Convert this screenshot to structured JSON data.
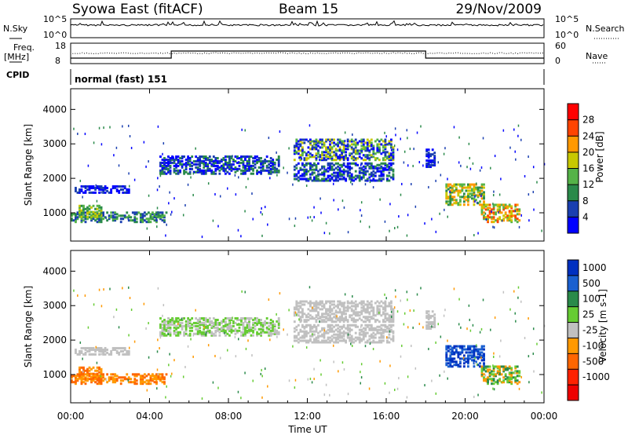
{
  "header": {
    "station": "Syowa East (fitACF)",
    "beam": "Beam 15",
    "date": "29/Nov/2009"
  },
  "top_panels": {
    "nsky_label": "N.Sky",
    "nsearch_label": "N.Search",
    "nsky_ticks": [
      "10^5",
      "10^0"
    ],
    "nsky_right_ticks": [
      "10^5",
      "10^0"
    ],
    "freq_label": "Freq.",
    "freq_unit": "[MHz]",
    "freq_ticks": [
      "18",
      "8"
    ],
    "nave_label": "Nave",
    "nave_ticks": [
      "60",
      "0"
    ],
    "cpid_label": "CPID",
    "cpid_value": "normal (fast) 151"
  },
  "chart_data": [
    {
      "type": "heatmap",
      "parameter": "Power",
      "ylabel": "Slant Range [km]",
      "xlabel": "Time UT",
      "yticks": [
        "1000",
        "2000",
        "3000",
        "4000"
      ],
      "ylim": [
        180,
        4600
      ],
      "xlim": [
        "00:00",
        "24:00"
      ],
      "colorbar_label": "Power [dB]",
      "colorbar_ticks": [
        "4",
        "8",
        "12",
        "16",
        "20",
        "24",
        "28"
      ],
      "colorbar_colors": [
        "#0000ff",
        "#1a3fb0",
        "#2a8a4a",
        "#55b348",
        "#c8c800",
        "#ff9900",
        "#ff4400",
        "#ff0000"
      ]
    },
    {
      "type": "heatmap",
      "parameter": "Velocity",
      "ylabel": "Slant Range [km]",
      "xlabel": "Time UT",
      "yticks": [
        "1000",
        "2000",
        "3000",
        "4000"
      ],
      "ylim": [
        180,
        4600
      ],
      "xlim": [
        "00:00",
        "24:00"
      ],
      "colorbar_label": "Velocity [m s-1]",
      "colorbar_ticks": [
        "1000",
        "500",
        "100",
        "25",
        "-25",
        "-100",
        "-500",
        "-1000"
      ],
      "colorbar_colors": [
        "#0030c0",
        "#1a60d0",
        "#2a8a4a",
        "#66cc33",
        "#c0c0c0",
        "#ff9900",
        "#ff6600",
        "#ff2200",
        "#ee0000"
      ]
    }
  ],
  "x_axis": {
    "ticks": [
      "00:00",
      "04:00",
      "08:00",
      "12:00",
      "16:00",
      "20:00",
      "00:00"
    ],
    "label": "Time UT"
  }
}
